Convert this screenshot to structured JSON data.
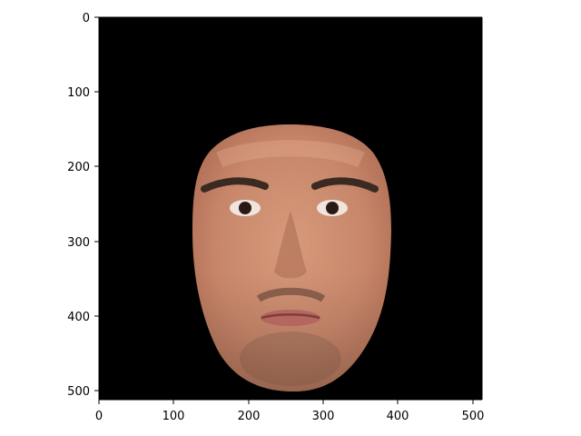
{
  "image_display": {
    "x_ticks": [
      "0",
      "100",
      "200",
      "300",
      "400",
      "500"
    ],
    "y_ticks": [
      "0",
      "100",
      "200",
      "300",
      "400",
      "500"
    ],
    "background_color": "#000000",
    "axis_color": "#000000",
    "subject": "face-crop-icon"
  }
}
